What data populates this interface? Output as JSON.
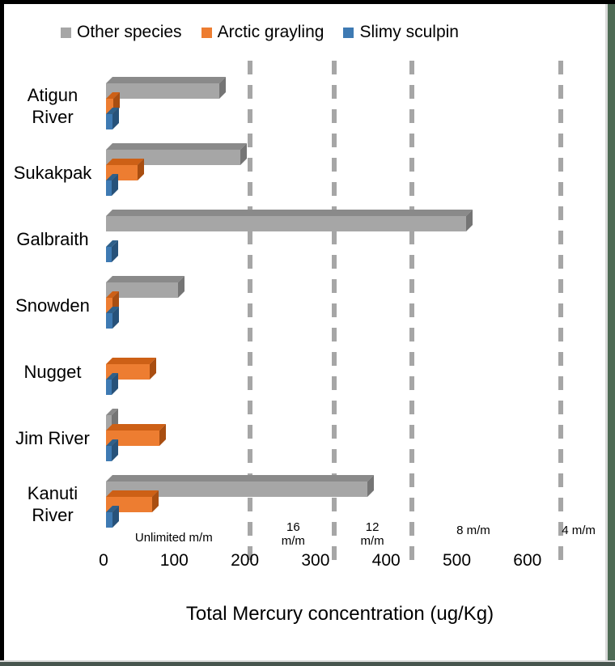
{
  "chart_data": {
    "type": "bar",
    "orientation": "horizontal",
    "style": "3d",
    "xlabel": "Total Mercury concentration (ug/Kg)",
    "categories": [
      "Atigun\nRiver",
      "Sukakpak",
      "Galbraith",
      "Snowden",
      "Nugget",
      "Jim River",
      "Kanuti\nRiver"
    ],
    "series": [
      {
        "name": "Other species",
        "color": "#a6a6a6",
        "color_top": "#8a8a8a",
        "color_side": "#757575",
        "values": [
          160,
          190,
          510,
          102,
          0,
          8,
          370
        ]
      },
      {
        "name": "Arctic grayling",
        "color": "#ed7d31",
        "color_top": "#cd6016",
        "color_side": "#a94e11",
        "values": [
          10,
          45,
          0,
          9,
          62,
          76,
          65
        ]
      },
      {
        "name": "Slimy sculpin",
        "color": "#3e7ab3",
        "color_top": "#2f608a",
        "color_side": "#27527a",
        "values": [
          9,
          8,
          8,
          9,
          8,
          8,
          9
        ]
      }
    ],
    "x_ticks": [
      0,
      100,
      200,
      300,
      400,
      500,
      600
    ],
    "xlim": [
      0,
      690
    ],
    "grid": "dashed-vertical-guidelines",
    "guidelines": [
      200,
      320,
      430,
      640
    ],
    "annotations": [
      {
        "text": "Unlimited m/m",
        "x": 96
      },
      {
        "text": "16\nm/m",
        "x": 265
      },
      {
        "text": "12\nm/m",
        "x": 377
      },
      {
        "text": "8 m/m",
        "x": 520
      },
      {
        "text": "4 m/m",
        "x": 669
      }
    ],
    "legend_position": "top"
  }
}
